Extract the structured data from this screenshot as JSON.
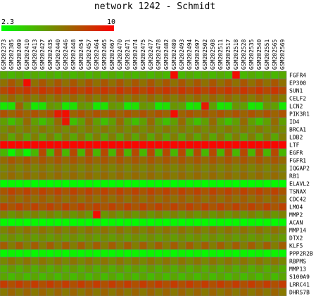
{
  "title": "network 1242 - Schmidt",
  "color_scale": {
    "min": 2.3,
    "max": 10,
    "min_label": "2.3",
    "max_label": "10",
    "low_color": "#00ff00",
    "mid_color": "#808000",
    "high_color": "#ff0000"
  },
  "chart_data": {
    "type": "heatmap",
    "title": "network 1242 - Schmidt",
    "value_range": [
      2.3,
      10
    ],
    "columns": [
      "GSM202373",
      "GSM202385",
      "GSM202409",
      "GSM202410",
      "GSM202413",
      "GSM202427",
      "GSM202435",
      "GSM202440",
      "GSM202446",
      "GSM202448",
      "GSM202454",
      "GSM202457",
      "GSM202464",
      "GSM202465",
      "GSM202467",
      "GSM202470",
      "GSM202471",
      "GSM202474",
      "GSM202475",
      "GSM202477",
      "GSM202478",
      "GSM202482",
      "GSM202489",
      "GSM202493",
      "GSM202494",
      "GSM202497",
      "GSM202502",
      "GSM202508",
      "GSM202511",
      "GSM202517",
      "GSM202518",
      "GSM202528",
      "GSM202535",
      "GSM202540",
      "GSM202551",
      "GSM202565",
      "GSM202569"
    ],
    "rows": [
      "FGFR4",
      "EP300",
      "SUN1",
      "CELF2",
      "LCN2",
      "PIK3R1",
      "ID4",
      "BRCA1",
      "LDB2",
      "LTF",
      "EGFR",
      "FGFR1",
      "IQGAP2",
      "RB1",
      "ELAVL2",
      "TSNAX",
      "CDC42",
      "LMO4",
      "MMP2",
      "ACAN",
      "MMP14",
      "DTX2",
      "KLF5",
      "PPP2R2B",
      "RBPMS",
      "MMP13",
      "S100A9",
      "LRRC41",
      "DHRS7B"
    ],
    "values": [
      [
        4.9,
        4.5,
        4.9,
        4.5,
        4.9,
        4.5,
        4.9,
        4.5,
        4.9,
        4.5,
        4.9,
        4.5,
        4.9,
        4.5,
        4.9,
        4.5,
        4.9,
        4.5,
        4.9,
        4.5,
        4.9,
        4.5,
        9.6,
        4.5,
        4.9,
        4.5,
        4.9,
        4.5,
        4.9,
        4.5,
        9.6,
        4.5,
        4.9,
        4.5,
        4.9,
        4.5,
        4.9
      ],
      [
        6.6,
        7.4,
        6.6,
        9.6,
        6.6,
        7.4,
        6.6,
        7.4,
        6.6,
        7.4,
        6.6,
        7.4,
        6.6,
        7.4,
        6.6,
        7.4,
        6.6,
        7.4,
        6.6,
        7.4,
        6.6,
        7.4,
        6.6,
        7.4,
        6.6,
        7.4,
        6.6,
        7.4,
        6.6,
        7.4,
        6.6,
        7.4,
        6.6,
        7.4,
        6.6,
        7.4,
        6.6
      ],
      [
        7.8,
        8.4,
        7.8,
        8.4,
        7.8,
        8.4,
        7.8,
        8.4,
        7.8,
        8.4,
        7.8,
        8.4,
        7.8,
        8.4,
        7.8,
        8.4,
        7.8,
        8.4,
        7.8,
        8.4,
        7.8,
        8.4,
        7.8,
        8.4,
        7.8,
        8.4,
        7.8,
        8.4,
        7.8,
        8.4,
        7.8,
        8.4,
        7.8,
        8.4,
        7.8,
        8.4,
        7.8
      ],
      [
        6.2,
        6.9,
        6.2,
        6.9,
        6.2,
        6.9,
        6.2,
        6.9,
        6.2,
        6.9,
        6.2,
        6.9,
        6.2,
        6.9,
        6.2,
        6.9,
        6.2,
        6.9,
        6.2,
        6.9,
        6.2,
        6.9,
        6.2,
        6.9,
        6.2,
        6.9,
        6.2,
        6.9,
        6.2,
        6.9,
        6.2,
        6.9,
        6.2,
        6.9,
        6.2,
        6.9,
        6.2
      ],
      [
        3.0,
        3.2,
        7.0,
        5.2,
        3.0,
        3.2,
        5.5,
        5.2,
        3.0,
        3.2,
        5.5,
        5.2,
        3.0,
        3.2,
        5.5,
        5.2,
        3.0,
        3.2,
        5.5,
        5.2,
        3.0,
        3.2,
        5.5,
        5.2,
        3.0,
        3.2,
        9.2,
        5.2,
        3.0,
        3.2,
        5.5,
        5.2,
        3.0,
        3.2,
        5.5,
        5.2,
        3.0
      ],
      [
        7.5,
        7.0,
        7.5,
        7.0,
        7.5,
        7.0,
        7.5,
        9.2,
        9.6,
        7.0,
        7.5,
        7.0,
        7.5,
        7.0,
        7.5,
        7.0,
        7.5,
        7.0,
        7.5,
        7.0,
        7.5,
        7.0,
        9.6,
        7.0,
        7.5,
        7.0,
        7.5,
        7.0,
        7.5,
        7.0,
        7.5,
        7.0,
        7.5,
        7.0,
        7.5,
        7.0,
        7.5
      ],
      [
        5.2,
        4.2,
        5.2,
        6.8,
        5.2,
        4.2,
        5.2,
        6.8,
        9.3,
        4.2,
        5.2,
        6.8,
        5.2,
        4.2,
        5.2,
        6.8,
        5.2,
        4.2,
        5.2,
        6.8,
        5.2,
        4.2,
        5.2,
        6.8,
        5.2,
        4.2,
        5.2,
        6.8,
        5.2,
        4.2,
        5.2,
        6.8,
        5.2,
        4.2,
        5.2,
        6.8,
        5.2
      ],
      [
        5.8,
        6.4,
        5.8,
        6.4,
        5.8,
        6.4,
        5.8,
        6.4,
        5.8,
        6.4,
        5.8,
        6.4,
        5.8,
        6.4,
        5.8,
        6.4,
        5.8,
        6.4,
        5.8,
        6.4,
        5.8,
        6.4,
        5.8,
        6.4,
        5.8,
        6.4,
        5.8,
        6.4,
        5.8,
        6.4,
        5.8,
        6.4,
        5.8,
        6.4,
        5.8,
        6.4,
        5.8
      ],
      [
        6.2,
        5.0,
        6.2,
        5.0,
        6.2,
        5.0,
        6.2,
        5.0,
        6.2,
        5.0,
        6.2,
        5.0,
        6.2,
        5.0,
        6.2,
        5.0,
        6.2,
        5.0,
        6.2,
        5.0,
        6.2,
        5.0,
        6.2,
        5.0,
        6.2,
        5.0,
        6.2,
        5.0,
        6.2,
        5.0,
        6.2,
        5.0,
        6.2,
        5.0,
        6.2,
        5.0,
        6.2
      ],
      [
        9.8,
        9.8,
        9.8,
        9.8,
        9.8,
        9.8,
        9.8,
        9.8,
        9.8,
        9.8,
        9.8,
        9.8,
        9.8,
        9.8,
        9.8,
        9.8,
        9.8,
        9.8,
        9.8,
        9.8,
        9.8,
        9.8,
        9.8,
        9.8,
        9.8,
        9.8,
        9.8,
        9.8,
        9.8,
        9.8,
        9.8,
        9.8,
        9.8,
        9.8,
        9.8,
        9.8,
        9.8
      ],
      [
        4.5,
        2.6,
        4.5,
        2.6,
        4.5,
        7.8,
        4.5,
        7.8,
        4.5,
        7.8,
        4.5,
        7.8,
        4.5,
        7.8,
        4.5,
        7.8,
        4.5,
        7.8,
        4.5,
        7.8,
        4.5,
        7.8,
        4.5,
        7.8,
        4.5,
        7.8,
        4.5,
        7.8,
        4.5,
        7.8,
        4.5,
        7.8,
        4.5,
        7.8,
        4.5,
        7.8,
        4.5
      ],
      [
        6.8,
        7.4,
        6.8,
        7.4,
        6.8,
        7.4,
        6.8,
        7.4,
        6.8,
        7.4,
        6.8,
        7.4,
        6.8,
        7.4,
        6.8,
        7.4,
        6.8,
        7.4,
        6.8,
        7.4,
        6.8,
        7.4,
        6.8,
        7.4,
        6.8,
        7.4,
        6.8,
        7.4,
        6.8,
        7.4,
        6.8,
        7.4,
        6.8,
        7.4,
        6.8,
        7.4,
        6.8
      ],
      [
        6.0,
        6.5,
        6.0,
        6.5,
        6.0,
        6.5,
        6.0,
        6.5,
        6.0,
        6.5,
        6.0,
        6.5,
        6.0,
        6.5,
        6.0,
        6.5,
        6.0,
        6.5,
        6.0,
        6.5,
        6.0,
        6.5,
        6.0,
        6.5,
        6.0,
        6.5,
        6.0,
        6.5,
        6.0,
        6.5,
        6.0,
        6.5,
        6.0,
        6.5,
        6.0,
        6.5,
        6.0
      ],
      [
        6.3,
        6.8,
        6.3,
        6.8,
        6.3,
        6.8,
        6.3,
        6.8,
        6.3,
        6.8,
        6.3,
        6.8,
        6.3,
        6.8,
        6.3,
        6.8,
        6.3,
        6.8,
        6.3,
        6.8,
        6.3,
        6.8,
        6.3,
        6.8,
        6.3,
        6.8,
        6.3,
        6.8,
        6.3,
        6.8,
        6.3,
        6.8,
        6.3,
        6.8,
        6.3,
        6.8,
        6.3
      ],
      [
        2.4,
        2.5,
        2.4,
        2.5,
        2.4,
        2.5,
        2.4,
        2.5,
        2.4,
        2.5,
        2.4,
        2.5,
        2.4,
        2.5,
        2.4,
        2.5,
        2.4,
        2.5,
        2.4,
        2.5,
        2.4,
        2.5,
        2.4,
        2.5,
        2.4,
        2.5,
        2.4,
        2.5,
        2.4,
        2.5,
        2.4,
        2.5,
        2.4,
        2.5,
        2.4,
        2.5,
        2.4
      ],
      [
        7.4,
        8.0,
        7.4,
        8.0,
        7.4,
        8.0,
        7.4,
        8.0,
        7.4,
        8.0,
        7.4,
        8.0,
        7.4,
        8.0,
        7.4,
        8.0,
        7.4,
        8.0,
        7.4,
        8.0,
        7.4,
        8.0,
        7.4,
        8.0,
        7.4,
        8.0,
        7.4,
        8.0,
        7.4,
        8.0,
        7.4,
        8.0,
        7.4,
        8.0,
        7.4,
        8.0,
        7.4
      ],
      [
        6.6,
        7.2,
        6.6,
        7.2,
        6.6,
        7.2,
        6.6,
        7.2,
        6.6,
        7.2,
        6.6,
        7.2,
        6.6,
        7.2,
        6.6,
        7.2,
        6.6,
        7.2,
        6.6,
        7.2,
        6.6,
        7.2,
        6.6,
        7.2,
        6.6,
        7.2,
        6.6,
        7.2,
        6.6,
        7.2,
        6.6,
        7.2,
        6.6,
        7.2,
        6.6,
        7.2,
        6.6
      ],
      [
        8.0,
        7.4,
        8.0,
        7.4,
        8.0,
        7.4,
        8.0,
        7.4,
        8.0,
        7.4,
        8.0,
        7.4,
        8.0,
        7.4,
        8.0,
        7.4,
        8.0,
        7.4,
        8.0,
        7.4,
        8.0,
        7.4,
        8.0,
        7.4,
        8.0,
        7.4,
        8.0,
        7.4,
        8.0,
        7.4,
        8.0,
        7.4,
        8.0,
        7.4,
        8.0,
        7.4,
        8.0
      ],
      [
        6.1,
        5.5,
        6.1,
        5.5,
        6.1,
        5.5,
        6.1,
        5.5,
        6.1,
        5.5,
        6.1,
        5.5,
        9.6,
        5.5,
        6.1,
        5.5,
        6.1,
        5.5,
        6.1,
        5.5,
        6.1,
        5.5,
        6.1,
        5.5,
        6.1,
        5.5,
        6.1,
        5.5,
        6.1,
        5.5,
        6.1,
        5.5,
        6.1,
        5.5,
        6.1,
        5.5,
        6.1
      ],
      [
        2.5,
        2.4,
        2.5,
        2.4,
        2.5,
        2.4,
        2.5,
        2.4,
        2.5,
        2.4,
        2.5,
        2.4,
        2.5,
        2.4,
        2.5,
        2.4,
        2.5,
        2.4,
        2.5,
        2.4,
        2.5,
        2.4,
        2.5,
        2.4,
        2.5,
        2.4,
        2.5,
        2.4,
        2.5,
        2.4,
        2.5,
        2.4,
        2.5,
        2.4,
        2.5,
        2.4,
        2.5
      ],
      [
        6.0,
        6.6,
        6.0,
        6.6,
        6.0,
        6.6,
        6.0,
        6.6,
        6.0,
        6.6,
        6.0,
        6.6,
        6.0,
        6.6,
        6.0,
        6.6,
        6.0,
        6.6,
        6.0,
        6.6,
        6.0,
        6.6,
        6.0,
        6.6,
        6.0,
        6.6,
        6.0,
        6.6,
        6.0,
        6.6,
        6.0,
        6.6,
        6.0,
        6.6,
        6.0,
        6.6,
        6.0
      ],
      [
        5.3,
        5.8,
        5.3,
        5.8,
        5.3,
        5.8,
        5.3,
        5.8,
        5.3,
        5.8,
        5.3,
        5.8,
        5.3,
        5.8,
        5.3,
        5.8,
        5.3,
        5.8,
        5.3,
        5.8,
        5.3,
        5.8,
        5.3,
        5.8,
        5.3,
        5.8,
        5.3,
        5.8,
        5.3,
        5.8,
        5.3,
        5.8,
        5.3,
        5.8,
        5.3,
        5.8,
        5.3
      ],
      [
        7.2,
        6.2,
        7.2,
        6.2,
        7.2,
        6.2,
        7.2,
        6.2,
        7.2,
        6.2,
        7.2,
        6.2,
        7.2,
        6.2,
        7.2,
        6.2,
        7.2,
        6.2,
        7.2,
        6.2,
        7.2,
        6.2,
        7.2,
        6.2,
        7.2,
        6.2,
        7.2,
        6.2,
        7.2,
        6.2,
        7.2,
        6.2,
        7.2,
        6.2,
        7.2,
        6.2,
        7.2
      ],
      [
        2.5,
        2.7,
        2.5,
        2.7,
        2.5,
        2.7,
        2.5,
        2.7,
        2.5,
        2.7,
        2.5,
        2.7,
        2.5,
        2.7,
        2.5,
        2.7,
        2.5,
        2.7,
        2.5,
        2.7,
        2.5,
        2.7,
        2.5,
        2.7,
        2.5,
        2.7,
        2.5,
        2.7,
        2.5,
        2.7,
        2.5,
        2.7,
        2.5,
        2.7,
        2.5,
        2.7,
        2.5
      ],
      [
        5.9,
        6.5,
        5.9,
        6.5,
        5.9,
        6.5,
        5.9,
        6.5,
        5.9,
        6.5,
        5.9,
        6.5,
        5.9,
        6.5,
        5.9,
        6.5,
        5.9,
        6.5,
        5.9,
        6.5,
        5.9,
        6.5,
        5.9,
        6.5,
        5.9,
        6.5,
        5.9,
        6.5,
        5.9,
        6.5,
        5.9,
        6.5,
        5.9,
        6.5,
        5.9,
        6.5,
        5.9
      ],
      [
        4.8,
        5.4,
        4.8,
        5.4,
        4.8,
        5.4,
        4.8,
        5.4,
        4.8,
        5.4,
        4.8,
        5.4,
        4.8,
        5.4,
        4.8,
        5.4,
        4.8,
        5.4,
        4.8,
        5.4,
        4.8,
        5.4,
        4.8,
        5.4,
        4.8,
        5.4,
        4.8,
        5.4,
        4.8,
        5.4,
        4.8,
        5.4,
        4.8,
        5.4,
        4.8,
        5.4,
        4.8
      ],
      [
        5.0,
        4.4,
        5.0,
        4.4,
        5.0,
        4.4,
        5.0,
        4.4,
        5.0,
        4.4,
        5.0,
        4.4,
        5.0,
        4.4,
        5.0,
        4.4,
        5.0,
        4.4,
        5.0,
        4.4,
        5.0,
        4.4,
        5.0,
        4.4,
        5.0,
        4.4,
        5.0,
        4.4,
        5.0,
        4.4,
        5.0,
        4.4,
        5.0,
        4.4,
        5.0,
        4.4,
        5.0
      ],
      [
        8.2,
        7.6,
        8.2,
        7.6,
        8.2,
        7.6,
        8.2,
        7.6,
        8.2,
        7.6,
        8.2,
        7.6,
        8.2,
        7.6,
        8.2,
        7.6,
        8.2,
        7.6,
        8.2,
        7.6,
        8.2,
        7.6,
        8.2,
        7.6,
        8.2,
        7.6,
        8.2,
        7.6,
        8.2,
        7.6,
        8.2,
        7.6,
        8.2,
        7.6,
        8.2,
        7.6,
        8.2
      ],
      [
        6.4,
        7.0,
        6.4,
        7.0,
        6.4,
        7.0,
        6.4,
        7.0,
        6.4,
        7.0,
        6.4,
        7.0,
        6.4,
        7.0,
        6.4,
        7.0,
        6.4,
        7.0,
        6.4,
        7.0,
        6.4,
        7.0,
        6.4,
        7.0,
        6.4,
        7.0,
        6.4,
        7.0,
        6.4,
        7.0,
        6.4,
        7.0,
        6.4,
        7.0,
        6.4,
        7.0,
        6.4
      ]
    ]
  }
}
